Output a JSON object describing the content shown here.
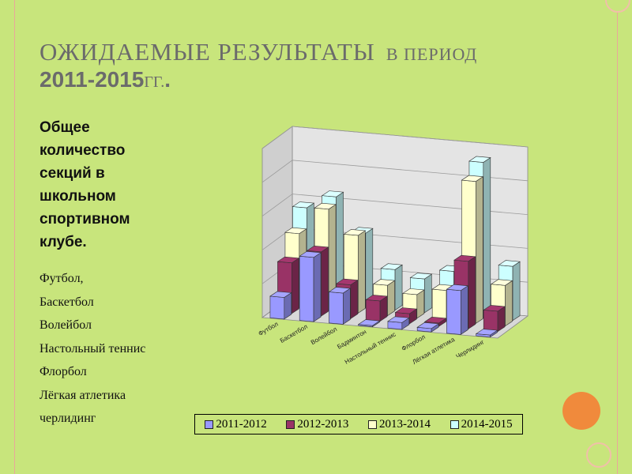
{
  "slide": {
    "title_line1_main": "ОЖИДАЕМЫЕ РЕЗУЛЬТАТЫ",
    "title_line1_small": "В ПЕРИОД",
    "title_line2_main": "2011-2015",
    "title_line2_small": "ГГ.",
    "intro_lines": [
      "Общее",
      "количество",
      "секций в",
      "школьном",
      "спортивном",
      "клубе."
    ],
    "sports_list": [
      "Футбол,",
      "Баскетбол",
      "Волейбол",
      "Настольный теннис",
      "Флорбол",
      "Лёгкая атлетика",
      "черлидинг"
    ]
  },
  "chart_data": {
    "type": "bar",
    "categories": [
      "Футбол",
      "Баскетбол",
      "Волейбол",
      "Бадминтон",
      "Настольный теннис",
      "Флорбол",
      "Лёгкая атлетика",
      "Черлидинг"
    ],
    "series": [
      {
        "name": "2011-2012",
        "values": [
          3.2,
          9.5,
          4.6,
          0,
          1,
          0.5,
          6.5,
          0.3
        ]
      },
      {
        "name": "2012-2013",
        "values": [
          7.5,
          9.5,
          5,
          3,
          1.5,
          0.5,
          10,
          3
        ]
      },
      {
        "name": "2013-2014",
        "values": [
          11,
          15,
          11.5,
          4.5,
          3.5,
          4.5,
          21,
          6
        ]
      },
      {
        "name": "2014-2015",
        "values": [
          14,
          16,
          11,
          6,
          5,
          6.5,
          23,
          8
        ]
      }
    ],
    "colors": [
      "#9999ff",
      "#993366",
      "#ffffcc",
      "#ccffff"
    ],
    "legend_position": "bottom",
    "grid": true,
    "ylim": [
      0,
      25
    ]
  }
}
